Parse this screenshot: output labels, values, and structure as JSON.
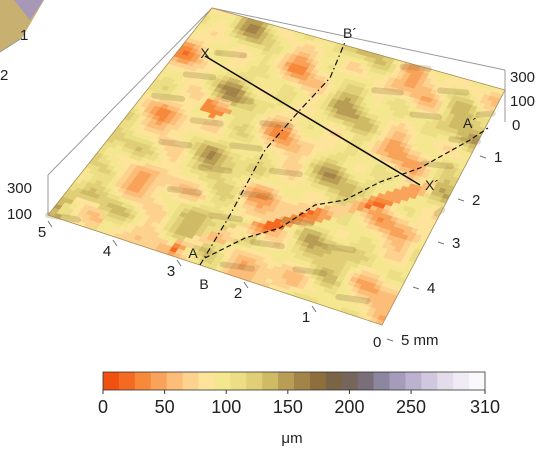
{
  "chart_data": {
    "type": "heatmap",
    "title": "",
    "unit_label": "μm",
    "x_axis": {
      "ticks": [
        "1",
        "2",
        "3",
        "4",
        "5 mm"
      ],
      "range": [
        0,
        5
      ]
    },
    "y_axis": {
      "ticks": [
        "1",
        "2",
        "3",
        "4",
        "5"
      ],
      "range": [
        0,
        5
      ]
    },
    "z_axis": {
      "ticks": [
        "100",
        "300"
      ],
      "range": [
        0,
        310
      ]
    },
    "colorbar": {
      "ticks": [
        "0",
        "50",
        "100",
        "150",
        "200",
        "250",
        "310"
      ],
      "tick_values": [
        0,
        50,
        100,
        150,
        200,
        250,
        310
      ],
      "range": [
        0,
        310
      ],
      "colors": [
        "#f05010",
        "#f46a22",
        "#f78a3a",
        "#f9a35a",
        "#fbbd78",
        "#fcd28e",
        "#fde49a",
        "#f5e690",
        "#ecde84",
        "#e0cf76",
        "#cfbb66",
        "#b99d55",
        "#a38448",
        "#8d6f3d",
        "#7b6446",
        "#75655a",
        "#7a6f78",
        "#8c86a0",
        "#a49cba",
        "#bcb1cf",
        "#d1c7de",
        "#e4dcea",
        "#f0ecf3",
        "#faf8fb"
      ]
    },
    "profile_lines": [
      {
        "name": "X",
        "end_label": "X´",
        "style": "solid"
      },
      {
        "name": "A",
        "end_label": "A´",
        "style": "dashed"
      },
      {
        "name": "B",
        "end_label": "B´",
        "style": "dash-dot"
      }
    ],
    "corner_fragments": {
      "labels": [
        "1",
        "2"
      ]
    },
    "grid": false
  }
}
